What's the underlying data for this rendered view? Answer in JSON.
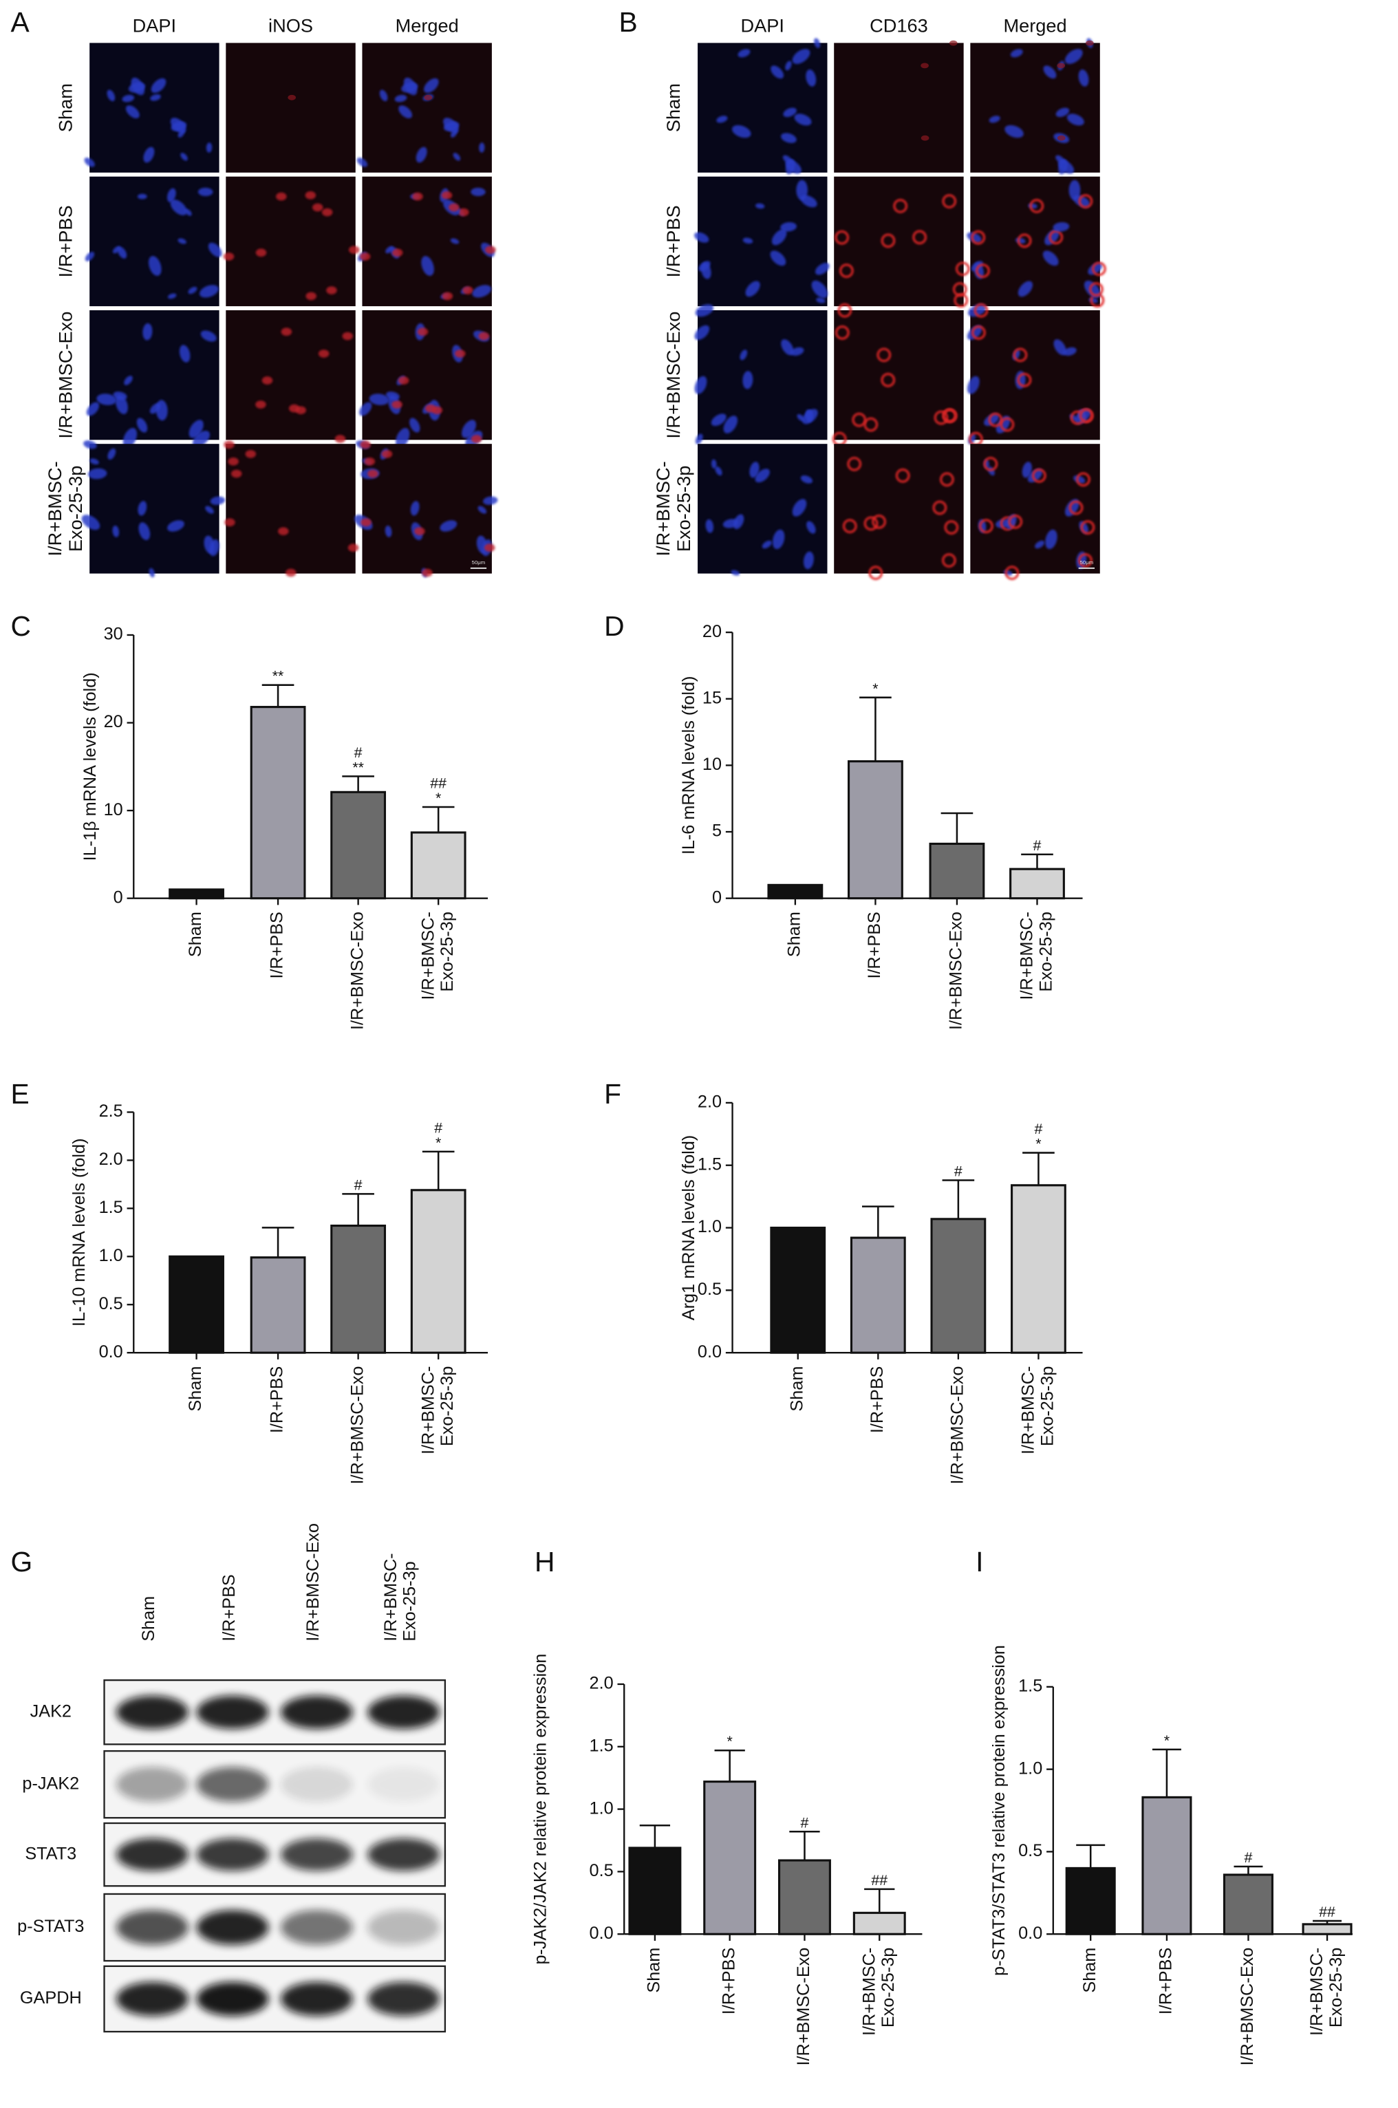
{
  "figure_panels": {
    "A": {
      "label": "A",
      "columns": [
        "DAPI",
        "iNOS",
        "Merged"
      ],
      "rows": [
        "Sham",
        "I/R+PBS",
        "I/R+BMSC-Exo",
        "I/R+BMSC-\nExo-25-3p"
      ],
      "scale_bar": "50μm"
    },
    "B": {
      "label": "B",
      "columns": [
        "DAPI",
        "CD163",
        "Merged"
      ],
      "rows": [
        "Sham",
        "I/R+PBS",
        "I/R+BMSC-Exo",
        "I/R+BMSC-\nExo-25-3p"
      ],
      "scale_bar": "50μm"
    },
    "G": {
      "label": "G",
      "lanes": [
        "Sham",
        "I/R+PBS",
        "I/R+BMSC-Exo",
        "I/R+BMSC-\nExo-25-3p"
      ],
      "proteins": [
        "JAK2",
        "p-JAK2",
        "STAT3",
        "p-STAT3",
        "GAPDH"
      ]
    }
  },
  "chart_data": [
    {
      "type": "bar",
      "panel_label": "C",
      "ylabel": "IL-1β mRNA levels (fold)",
      "categories": [
        "Sham",
        "I/R+PBS",
        "I/R+BMSC-Exo",
        "I/R+BMSC-\nExo-25-3p"
      ],
      "values": [
        1,
        21.8,
        12.1,
        7.5
      ],
      "errors": [
        0,
        2.5,
        1.8,
        2.9
      ],
      "colors": [
        "#111111",
        "#9c9ba6",
        "#6b6b6b",
        "#d3d3d3"
      ],
      "annotations": [
        [],
        [
          "**"
        ],
        [
          "#",
          "**"
        ],
        [
          "##",
          "*"
        ]
      ],
      "ylim": [
        0,
        30
      ],
      "yticks": [
        0,
        10,
        20,
        30
      ]
    },
    {
      "type": "bar",
      "panel_label": "D",
      "ylabel": "IL-6 mRNA levels (fold)",
      "categories": [
        "Sham",
        "I/R+PBS",
        "I/R+BMSC-Exo",
        "I/R+BMSC-\nExo-25-3p"
      ],
      "values": [
        1,
        10.3,
        4.1,
        2.2
      ],
      "errors": [
        0,
        4.8,
        2.3,
        1.1
      ],
      "colors": [
        "#111111",
        "#9c9ba6",
        "#6b6b6b",
        "#d3d3d3"
      ],
      "annotations": [
        [],
        [
          "*"
        ],
        [],
        [
          "#"
        ]
      ],
      "ylim": [
        0,
        20
      ],
      "yticks": [
        0,
        5,
        10,
        15,
        20
      ]
    },
    {
      "type": "bar",
      "panel_label": "E",
      "ylabel": "IL-10 mRNA levels (fold)",
      "categories": [
        "Sham",
        "I/R+PBS",
        "I/R+BMSC-Exo",
        "I/R+BMSC-\nExo-25-3p"
      ],
      "values": [
        1.0,
        0.99,
        1.32,
        1.69
      ],
      "errors": [
        0,
        0.31,
        0.33,
        0.4
      ],
      "colors": [
        "#111111",
        "#9c9ba6",
        "#6b6b6b",
        "#d3d3d3"
      ],
      "annotations": [
        [],
        [],
        [
          "#"
        ],
        [
          "#",
          "*"
        ]
      ],
      "ylim": [
        0,
        2.5
      ],
      "yticks": [
        {
          "value": 0,
          "label": "0.0"
        },
        0.5,
        {
          "value": 1,
          "label": "1.0"
        },
        1.5,
        {
          "value": 2,
          "label": "2.0"
        },
        2.5
      ]
    },
    {
      "type": "bar",
      "panel_label": "F",
      "ylabel": "Arg1 mRNA levels (fold)",
      "categories": [
        "Sham",
        "I/R+PBS",
        "I/R+BMSC-Exo",
        "I/R+BMSC-\nExo-25-3p"
      ],
      "values": [
        1.0,
        0.92,
        1.07,
        1.34
      ],
      "errors": [
        0,
        0.25,
        0.31,
        0.26
      ],
      "colors": [
        "#111111",
        "#9c9ba6",
        "#6b6b6b",
        "#d3d3d3"
      ],
      "annotations": [
        [],
        [],
        [
          "#"
        ],
        [
          "#",
          "*"
        ]
      ],
      "ylim": [
        0,
        2.0
      ],
      "yticks": [
        {
          "value": 0,
          "label": "0.0"
        },
        0.5,
        {
          "value": 1,
          "label": "1.0"
        },
        1.5,
        {
          "value": 2,
          "label": "2.0"
        }
      ]
    },
    {
      "type": "bar",
      "panel_label": "H",
      "ylabel": "p-JAK2/JAK2 relative protein expression",
      "categories": [
        "Sham",
        "I/R+PBS",
        "I/R+BMSC-Exo",
        "I/R+BMSC-\nExo-25-3p"
      ],
      "values": [
        0.69,
        1.22,
        0.59,
        0.17
      ],
      "errors": [
        0.18,
        0.25,
        0.23,
        0.19
      ],
      "colors": [
        "#111111",
        "#9c9ba6",
        "#6b6b6b",
        "#d3d3d3"
      ],
      "annotations": [
        [],
        [
          "*"
        ],
        [
          "#"
        ],
        [
          "##"
        ]
      ],
      "ylim": [
        0,
        2.0
      ],
      "yticks": [
        {
          "value": 0,
          "label": "0.0"
        },
        0.5,
        {
          "value": 1,
          "label": "1.0"
        },
        1.5,
        {
          "value": 2,
          "label": "2.0"
        }
      ]
    },
    {
      "type": "bar",
      "panel_label": "I",
      "ylabel": "p-STAT3/STAT3 relative protein expression",
      "categories": [
        "Sham",
        "I/R+PBS",
        "I/R+BMSC-Exo",
        "I/R+BMSC-\nExo-25-3p"
      ],
      "values": [
        0.4,
        0.83,
        0.36,
        0.06
      ],
      "errors": [
        0.14,
        0.29,
        0.05,
        0.02
      ],
      "colors": [
        "#111111",
        "#9c9ba6",
        "#6b6b6b",
        "#d3d3d3"
      ],
      "annotations": [
        [],
        [
          "*"
        ],
        [
          "#"
        ],
        [
          "##"
        ]
      ],
      "ylim": [
        0,
        1.5
      ],
      "yticks": [
        {
          "value": 0,
          "label": "0.0"
        },
        0.5,
        {
          "value": 1,
          "label": "1.0"
        },
        1.5
      ]
    }
  ]
}
